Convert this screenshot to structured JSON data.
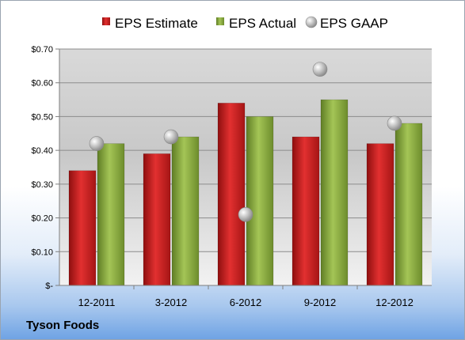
{
  "chart_data": {
    "type": "bar",
    "title": "",
    "xlabel": "",
    "ylabel": "",
    "categories": [
      "12-2011",
      "3-2012",
      "6-2012",
      "9-2012",
      "12-2012"
    ],
    "series": [
      {
        "name": "EPS Estimate",
        "kind": "bar",
        "color": "#cc1f1f",
        "values": [
          0.34,
          0.39,
          0.54,
          0.44,
          0.42
        ]
      },
      {
        "name": "EPS Actual",
        "kind": "bar",
        "color": "#8db040",
        "values": [
          0.42,
          0.44,
          0.5,
          0.55,
          0.48
        ]
      },
      {
        "name": "EPS GAAP",
        "kind": "scatter",
        "color": "#b0b0b0",
        "values": [
          0.42,
          0.44,
          0.21,
          0.64,
          0.48
        ]
      }
    ],
    "ylim": [
      0,
      0.7
    ],
    "yticks": [
      0,
      0.1,
      0.2,
      0.3,
      0.4,
      0.5,
      0.6,
      0.7
    ],
    "ytick_labels": [
      "$-",
      "$0.10",
      "$0.20",
      "$0.30",
      "$0.40",
      "$0.50",
      "$0.60",
      "$0.70"
    ],
    "grid": true,
    "legend": "top"
  },
  "footer": {
    "company": "Tyson Foods"
  }
}
